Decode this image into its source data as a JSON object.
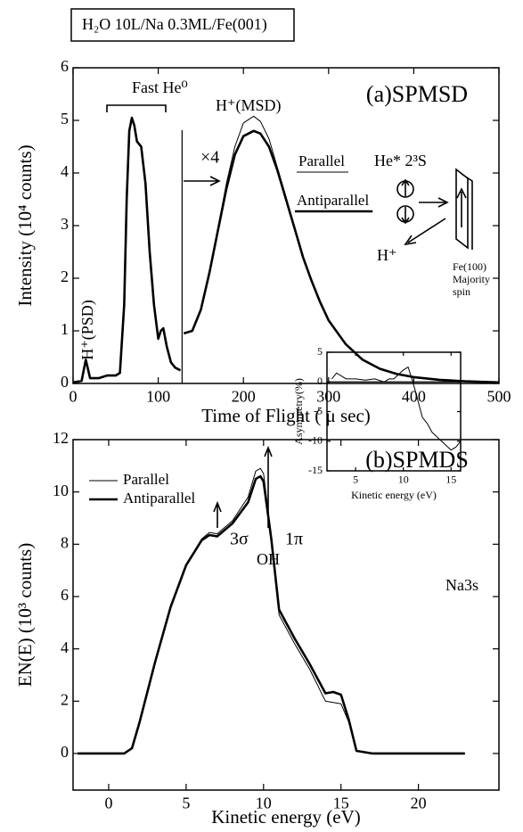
{
  "header": {
    "label": "H₂O 10L/Na 0.3ML/Fe(001)"
  },
  "chart_data": [
    {
      "type": "line",
      "title": "(a)SPMSD",
      "xlabel": "Time of Flight ( μ sec)",
      "ylabel": "Intensity (10⁴ counts)",
      "x": [
        0,
        10,
        15,
        20,
        30,
        40,
        50,
        55,
        60,
        63,
        66,
        69,
        72,
        75,
        80,
        85,
        90,
        95,
        100,
        103,
        106,
        110,
        115,
        120,
        126,
        128,
        130,
        140,
        150,
        160,
        170,
        180,
        190,
        200,
        212,
        220,
        230,
        240,
        250,
        260,
        270,
        280,
        290,
        300,
        320,
        340,
        360,
        380,
        400,
        430,
        460,
        500
      ],
      "series": [
        {
          "name": "Parallel",
          "color": "#000000",
          "values": [
            0.02,
            0.05,
            0.45,
            0.1,
            0.1,
            0.15,
            0.15,
            0.2,
            1.5,
            3.5,
            4.8,
            5.05,
            4.9,
            4.6,
            4.5,
            3.8,
            2.5,
            1.5,
            0.85,
            1.0,
            1.05,
            0.7,
            0.4,
            0.3,
            0.25,
            null,
            0.95,
            1.0,
            1.4,
            2.1,
            2.95,
            3.8,
            4.5,
            4.95,
            5.08,
            4.98,
            4.65,
            4.1,
            3.55,
            2.95,
            2.4,
            1.95,
            1.55,
            1.2,
            0.75,
            0.45,
            0.28,
            0.18,
            0.12,
            0.07,
            0.04,
            0.02
          ]
        },
        {
          "name": "Antiparallel",
          "color": "#000000",
          "values": [
            0.02,
            0.05,
            0.45,
            0.1,
            0.1,
            0.15,
            0.15,
            0.2,
            1.5,
            3.5,
            4.8,
            5.05,
            4.9,
            4.6,
            4.5,
            3.8,
            2.5,
            1.5,
            0.85,
            1.0,
            1.05,
            0.7,
            0.4,
            0.3,
            0.25,
            null,
            0.95,
            1.0,
            1.4,
            2.1,
            2.9,
            3.7,
            4.35,
            4.7,
            4.8,
            4.75,
            4.5,
            4.05,
            3.5,
            2.95,
            2.4,
            1.95,
            1.55,
            1.2,
            0.75,
            0.45,
            0.28,
            0.18,
            0.12,
            0.07,
            0.04,
            0.02
          ]
        }
      ],
      "xlim": [
        0,
        500
      ],
      "ylim": [
        0,
        6
      ],
      "xticks": [
        0,
        100,
        200,
        300,
        400,
        500
      ],
      "yticks": [
        0,
        1,
        2,
        3,
        4,
        5,
        6
      ],
      "annotations": [
        "Fast He⁰",
        "H⁺(MSD)",
        "×4",
        "H⁺(PSD)",
        "He* 2³S",
        "H⁺",
        "Fe(100)",
        "Majority",
        "spin"
      ]
    },
    {
      "type": "line",
      "title": "(b)SPMDS",
      "xlabel": "Kinetic energy (eV)",
      "ylabel": "EN(E) (10³ counts)",
      "x": [
        -2,
        1,
        1.5,
        2,
        3,
        4,
        5,
        6,
        6.5,
        7,
        8,
        9,
        9.5,
        9.8,
        10,
        10.5,
        11,
        12,
        13,
        14,
        14.5,
        15,
        15.5,
        16,
        17,
        20,
        23
      ],
      "series": [
        {
          "name": "Parallel",
          "color": "#000000",
          "values": [
            0,
            0,
            0.2,
            1.2,
            3.5,
            5.6,
            7.2,
            8.2,
            8.45,
            8.4,
            8.9,
            9.8,
            10.8,
            10.9,
            10.7,
            8.3,
            5.3,
            4.2,
            3.2,
            2.0,
            1.95,
            1.9,
            1.2,
            0.1,
            0,
            0,
            0
          ]
        },
        {
          "name": "Antiparallel",
          "color": "#000000",
          "values": [
            0,
            0,
            0.2,
            1.2,
            3.5,
            5.6,
            7.2,
            8.15,
            8.35,
            8.3,
            8.8,
            9.6,
            10.5,
            10.6,
            10.4,
            8.2,
            5.5,
            4.4,
            3.4,
            2.3,
            2.35,
            2.25,
            1.3,
            0.1,
            0,
            0,
            0
          ]
        }
      ],
      "xlim": [
        -2.3,
        25.2
      ],
      "ylim": [
        -1.4,
        12
      ],
      "xticks": [
        0,
        5,
        10,
        15,
        20
      ],
      "yticks": [
        0,
        2,
        4,
        6,
        8,
        10,
        12
      ],
      "annotations": [
        "3σ",
        "OH",
        "1π",
        "Na3s"
      ]
    },
    {
      "type": "line",
      "xlabel": "Kinetic energy (eV)",
      "ylabel": "Asymmetry(%)",
      "x": [
        2.5,
        3,
        3.5,
        4,
        5,
        6,
        7,
        8,
        8.5,
        9,
        10,
        10.5,
        11,
        11.5,
        12,
        12.5,
        13,
        14,
        15,
        15.5,
        16
      ],
      "values": [
        0.5,
        1.5,
        1,
        0.5,
        0.5,
        0.3,
        0.5,
        0,
        0.5,
        0.5,
        2,
        2.5,
        0,
        -3,
        -6,
        -7,
        -8.5,
        -10,
        -11.5,
        -11,
        -10
      ],
      "color": "#000000",
      "zero_line": true,
      "xlim": [
        2,
        16
      ],
      "ylim": [
        -15,
        5
      ],
      "xticks": [
        5,
        10,
        15
      ],
      "yticks": [
        -15,
        -10,
        -5,
        0,
        5
      ]
    }
  ]
}
